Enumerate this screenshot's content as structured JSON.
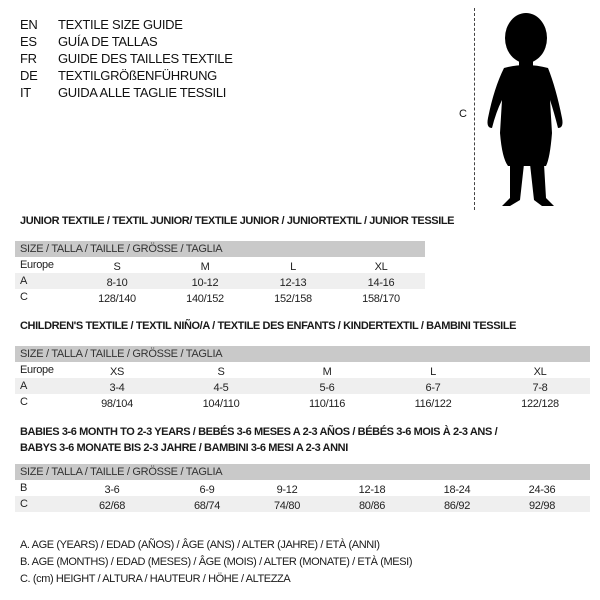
{
  "languages": [
    {
      "code": "EN",
      "text": "TEXTILE SIZE GUIDE"
    },
    {
      "code": "ES",
      "text": "GUÍA DE TALLAS"
    },
    {
      "code": "FR",
      "text": "GUIDE DES TAILLES TEXTILE"
    },
    {
      "code": "DE",
      "text": "TEXTILGRÖßENFÜHRUNG"
    },
    {
      "code": "IT",
      "text": "GUIDA ALLE TAGLIE TESSILI"
    }
  ],
  "figure": {
    "measure_label": "C",
    "icon": "child-silhouette"
  },
  "colors": {
    "header_bar": "#c9c9c9",
    "shaded_row": "#efefef"
  },
  "tables": [
    {
      "title": [
        "JUNIOR TEXTILE / TEXTIL JUNIOR/ TEXTILE JUNIOR / JUNIORTEXTIL / JUNIOR TESSILE"
      ],
      "header": "SIZE / TALLA / TAILLE / GRÖSSE / TAGLIA",
      "rows": [
        {
          "label": "Europe",
          "values": [
            "S",
            "M",
            "L",
            "XL"
          ]
        },
        {
          "label": "A",
          "values": [
            "8-10",
            "10-12",
            "12-13",
            "14-16"
          ]
        },
        {
          "label": "C",
          "values": [
            "128/140",
            "140/152",
            "152/158",
            "158/170"
          ]
        }
      ]
    },
    {
      "title": [
        "CHILDREN'S TEXTILE / TEXTIL NIÑO/A / TEXTILE DES ENFANTS / KINDERTEXTIL / BAMBINI TESSILE"
      ],
      "header": "SIZE / TALLA / TAILLE / GRÖSSE / TAGLIA",
      "rows": [
        {
          "label": "Europe",
          "values": [
            "XS",
            "S",
            "M",
            "L",
            "XL"
          ]
        },
        {
          "label": "A",
          "values": [
            "3-4",
            "4-5",
            "5-6",
            "6-7",
            "7-8"
          ]
        },
        {
          "label": "C",
          "values": [
            "98/104",
            "104/110",
            "110/116",
            "116/122",
            "122/128"
          ]
        }
      ]
    },
    {
      "title": [
        "BABIES 3-6 MONTH TO 2-3 YEARS / BEBÉS 3-6 MESES A 2-3 AÑOS / BÉBÉS 3-6 MOIS À 2-3 ANS /",
        "BABYS 3-6 MONATE BIS 2-3 JAHRE / BAMBINI 3-6 MESI A 2-3 ANNI"
      ],
      "header": "SIZE / TALLA / TAILLE / GRÖSSE / TAGLIA",
      "rows": [
        {
          "label": "B",
          "values": [
            "3-6",
            "6-9",
            "9-12",
            "12-18",
            "18-24",
            "24-36"
          ]
        },
        {
          "label": "C",
          "values": [
            "62/68",
            "68/74",
            "74/80",
            "80/86",
            "86/92",
            "92/98"
          ]
        }
      ]
    }
  ],
  "legend": [
    "A. AGE (YEARS) / EDAD (AÑOS) / ÂGE (ANS) / ALTER (JAHRE) / ETÀ (ANNI)",
    "B. AGE (MONTHS) / EDAD (MESES) / ÂGE (MOIS) / ALTER (MONATE) / ETÀ (MESI)",
    "C. (cm) HEIGHT / ALTURA / HAUTEUR / HÖHE / ALTEZZA"
  ]
}
